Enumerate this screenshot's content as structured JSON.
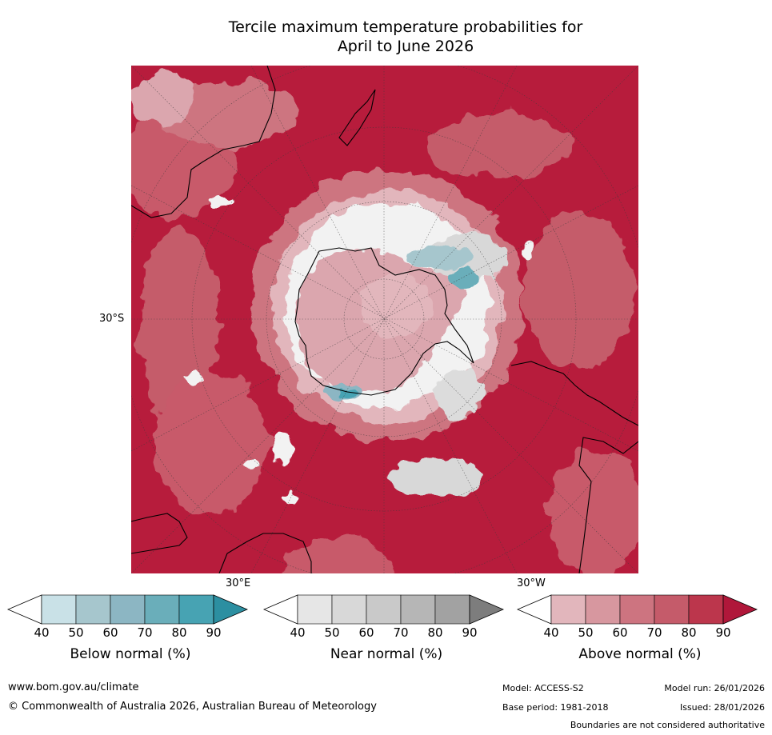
{
  "title_line1": "Tercile maximum temperature probabilities for",
  "title_line2": "April to June 2026",
  "map": {
    "lat_label": "30°S",
    "lon_label_east": "30°E",
    "lon_label_west": "30°W",
    "colors": {
      "ocean_dominant": "#b71c3c",
      "above_70": "#c85a6b",
      "above_60": "#d0808b",
      "above_50": "#dba6ae",
      "near_normal": "#dcdcdc",
      "below_50": "#a8c8d0",
      "below_70": "#5fa6b6",
      "coastline": "#000000"
    }
  },
  "legends": [
    {
      "title": "Below normal (%)",
      "ticks": [
        "40",
        "50",
        "60",
        "70",
        "80",
        "90"
      ],
      "colors": [
        "#ffffff",
        "#c9e1e7",
        "#a6c6cd",
        "#8cb6c3",
        "#6aaeba",
        "#47a3b3",
        "#2c8fa1"
      ]
    },
    {
      "title": "Near normal (%)",
      "ticks": [
        "40",
        "50",
        "60",
        "70",
        "80",
        "90"
      ],
      "colors": [
        "#ffffff",
        "#e6e6e6",
        "#d8d8d8",
        "#c9c9c9",
        "#b6b6b6",
        "#a2a2a2",
        "#7d7d7d"
      ]
    },
    {
      "title": "Above normal (%)",
      "ticks": [
        "40",
        "50",
        "60",
        "70",
        "80",
        "90"
      ],
      "colors": [
        "#ffffff",
        "#e2b6bc",
        "#d7979f",
        "#cd7480",
        "#c55b6a",
        "#bc364c",
        "#b0173a"
      ]
    }
  ],
  "footer": {
    "website": "www.bom.gov.au/climate",
    "copyright": "© Commonwealth of Australia 2026, Australian Bureau of Meteorology",
    "model": "Model: ACCESS-S2",
    "model_run": "Model run: 26/01/2026",
    "base_period": "Base period: 1981-2018",
    "issued": "Issued: 28/01/2026",
    "disclaimer": "Boundaries are not considered authoritative"
  }
}
